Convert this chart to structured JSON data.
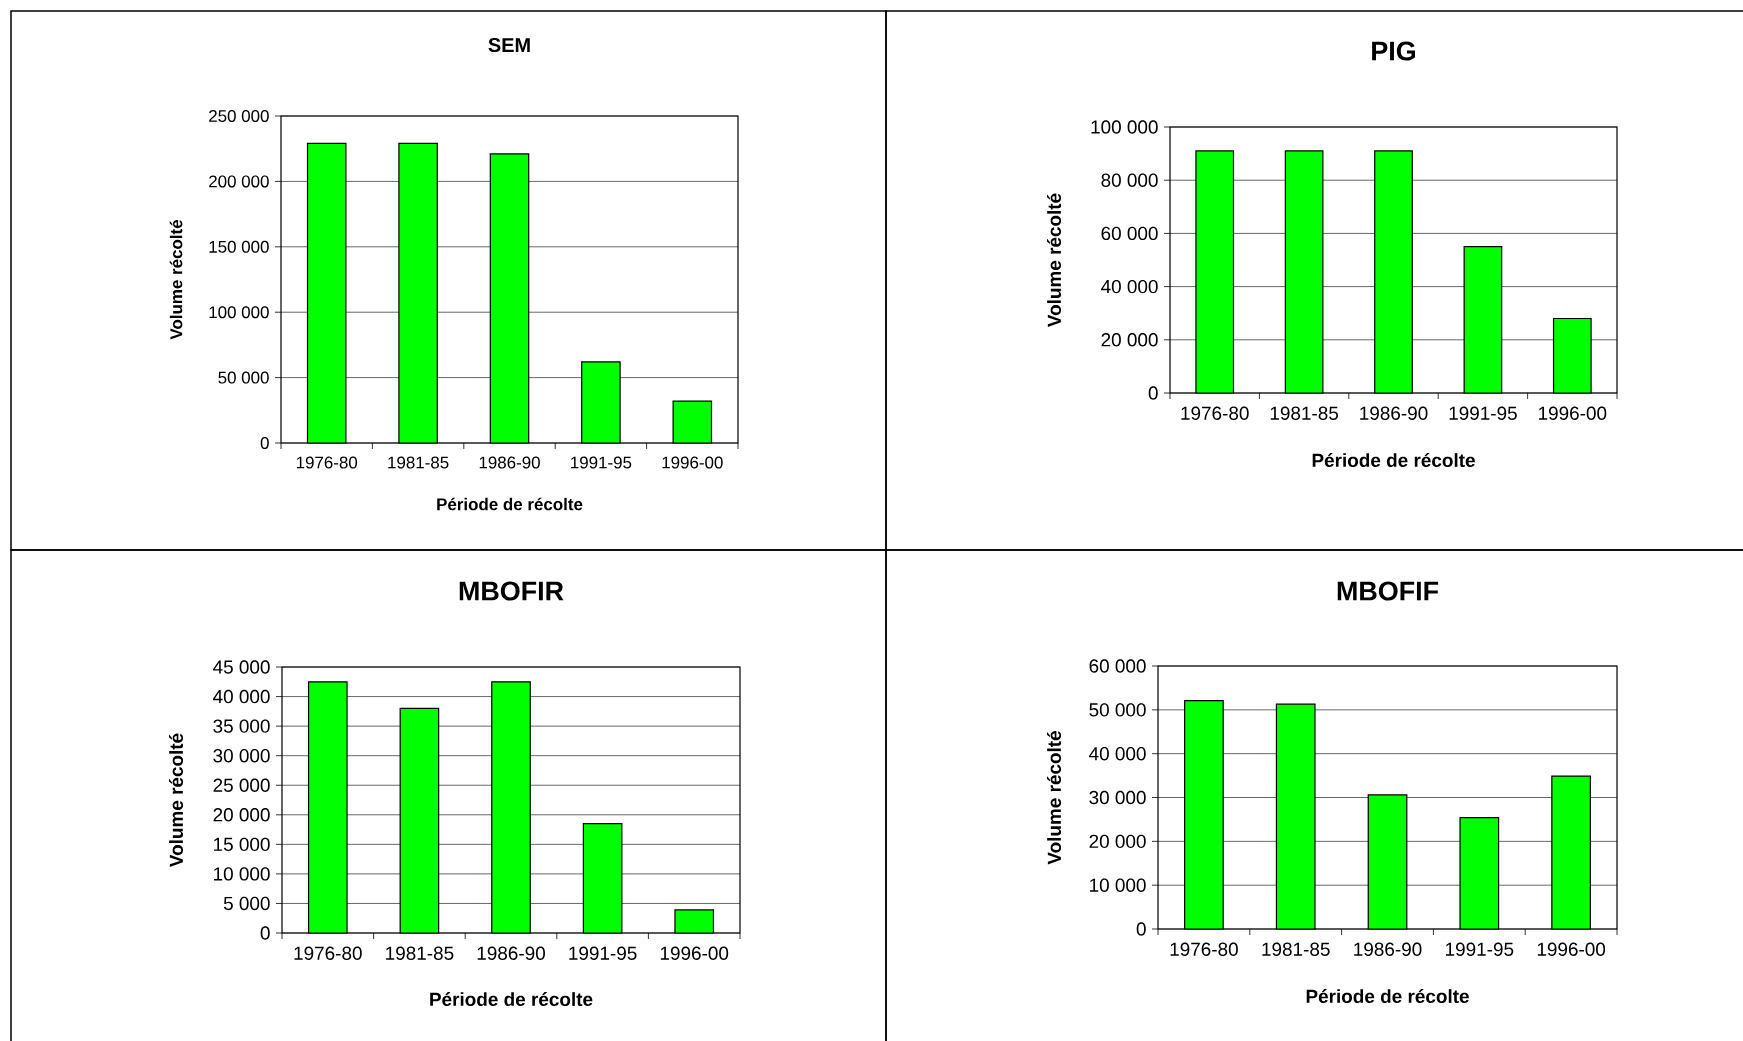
{
  "chart_data": [
    {
      "type": "bar",
      "title": "SEM",
      "xlabel": "Période de récolte",
      "ylabel": "Volume récolté",
      "categories": [
        "1976-80",
        "1981-85",
        "1986-90",
        "1991-95",
        "1996-00"
      ],
      "values": [
        229000,
        229000,
        221000,
        62000,
        32000
      ],
      "color": "#00ff00",
      "ylim": [
        0,
        250000
      ],
      "yticks": [
        {
          "value": 0,
          "label": "0"
        },
        {
          "value": 50000,
          "label": "50 000"
        },
        {
          "value": 100000,
          "label": "100 000"
        },
        {
          "value": 150000,
          "label": "150 000"
        },
        {
          "value": 200000,
          "label": "200 000"
        },
        {
          "value": 250000,
          "label": "250 000"
        }
      ],
      "grid": "y"
    },
    {
      "type": "bar",
      "title": "PIG",
      "xlabel": "Période de récolte",
      "ylabel": "Volume récolté",
      "categories": [
        "1976-80",
        "1981-85",
        "1986-90",
        "1991-95",
        "1996-00"
      ],
      "values": [
        91000,
        91000,
        91000,
        55000,
        28000
      ],
      "color": "#00ff00",
      "ylim": [
        0,
        100000
      ],
      "yticks": [
        {
          "value": 0,
          "label": "0"
        },
        {
          "value": 20000,
          "label": "20 000"
        },
        {
          "value": 40000,
          "label": "40 000"
        },
        {
          "value": 60000,
          "label": "60 000"
        },
        {
          "value": 80000,
          "label": "80 000"
        },
        {
          "value": 100000,
          "label": "100 000"
        }
      ],
      "grid": "y"
    },
    {
      "type": "bar",
      "title": "MBOFIR",
      "xlabel": "Période de récolte",
      "ylabel": "Volume récolté",
      "categories": [
        "1976-80",
        "1981-85",
        "1986-90",
        "1991-95",
        "1996-00"
      ],
      "values": [
        42500,
        38000,
        42500,
        18500,
        3900
      ],
      "color": "#00ff00",
      "ylim": [
        0,
        45000
      ],
      "yticks": [
        {
          "value": 0,
          "label": "0"
        },
        {
          "value": 5000,
          "label": "5 000"
        },
        {
          "value": 10000,
          "label": "10 000"
        },
        {
          "value": 15000,
          "label": "15 000"
        },
        {
          "value": 20000,
          "label": "20 000"
        },
        {
          "value": 25000,
          "label": "25 000"
        },
        {
          "value": 30000,
          "label": "30 000"
        },
        {
          "value": 35000,
          "label": "35 000"
        },
        {
          "value": 40000,
          "label": "40 000"
        },
        {
          "value": 45000,
          "label": "45 000"
        }
      ],
      "grid": "y"
    },
    {
      "type": "bar",
      "title": "MBOFIF",
      "xlabel": "Période de récolte",
      "ylabel": "Volume récolté",
      "categories": [
        "1976-80",
        "1981-85",
        "1986-90",
        "1991-95",
        "1996-00"
      ],
      "values": [
        52100,
        51300,
        30600,
        25400,
        34900
      ],
      "color": "#00ff00",
      "ylim": [
        0,
        60000
      ],
      "yticks": [
        {
          "value": 0,
          "label": "0"
        },
        {
          "value": 10000,
          "label": "10 000"
        },
        {
          "value": 20000,
          "label": "20 000"
        },
        {
          "value": 30000,
          "label": "30 000"
        },
        {
          "value": 40000,
          "label": "40 000"
        },
        {
          "value": 50000,
          "label": "50 000"
        },
        {
          "value": 60000,
          "label": "60 000"
        }
      ],
      "grid": "y"
    }
  ]
}
